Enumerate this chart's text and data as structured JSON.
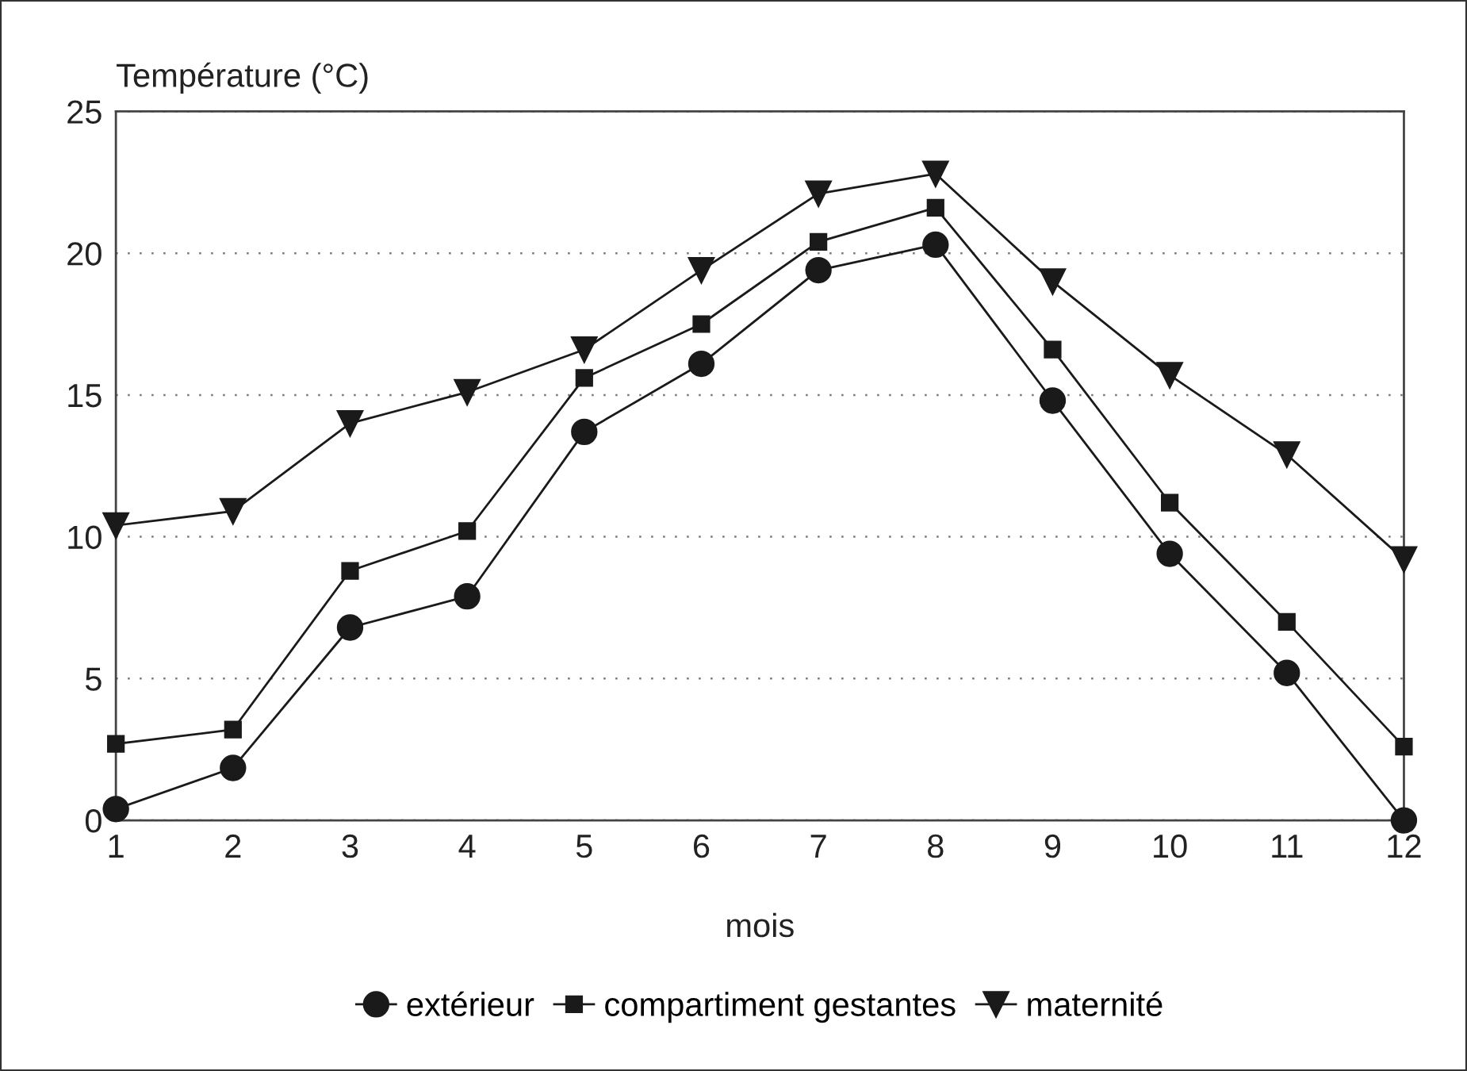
{
  "chart_data": {
    "type": "line",
    "ylabel": "Température (°C)",
    "xlabel": "mois",
    "x": [
      1,
      2,
      3,
      4,
      5,
      6,
      7,
      8,
      9,
      10,
      11,
      12
    ],
    "series": [
      {
        "name": "extérieur",
        "color": "#1a1a1a",
        "marker": "circle",
        "values": [
          0.4,
          1.85,
          6.8,
          7.9,
          13.7,
          16.1,
          19.4,
          20.3,
          14.8,
          9.4,
          5.2,
          0
        ]
      },
      {
        "name": "compartiment gestantes",
        "color": "#1a1a1a",
        "marker": "square",
        "values": [
          2.7,
          3.2,
          8.8,
          10.2,
          15.6,
          17.5,
          20.4,
          21.6,
          16.6,
          11.2,
          7.0,
          2.6
        ]
      },
      {
        "name": "maternité",
        "color": "#1a1a1a",
        "marker": "triangle",
        "values": [
          10.4,
          10.9,
          14.0,
          15.1,
          16.6,
          19.4,
          22.1,
          22.8,
          19.0,
          15.7,
          12.9,
          9.2
        ]
      }
    ],
    "xlim": [
      1,
      12
    ],
    "xticks": [
      1,
      2,
      3,
      4,
      5,
      6,
      7,
      8,
      9,
      10,
      11,
      12
    ],
    "ylim": [
      0,
      25
    ],
    "yticks": [
      0,
      5,
      10,
      15,
      20,
      25
    ],
    "grid": "y",
    "legend": "bottom",
    "line_style": "solid"
  }
}
